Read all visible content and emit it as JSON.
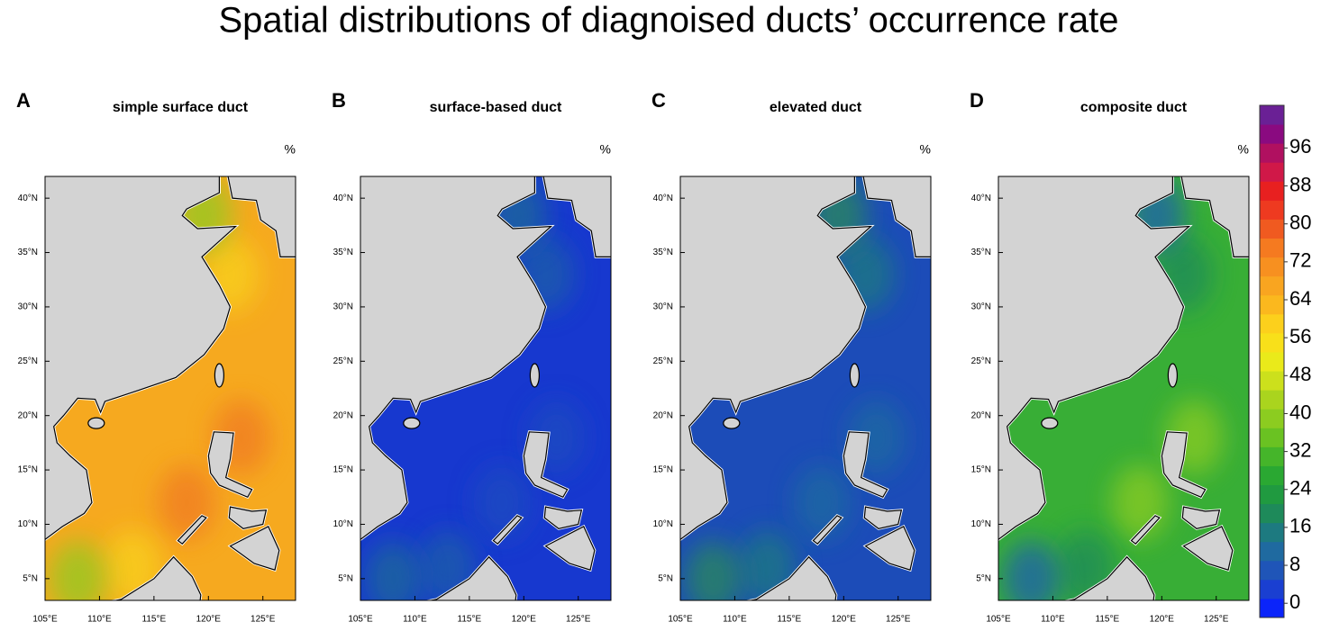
{
  "title": "Spatial distributions of diagnoised ducts’ occurrence rate",
  "panels": [
    {
      "letter": "A",
      "title": "simple surface duct",
      "unit": "%",
      "ocean_color": "#f6a91f",
      "accent_colors": [
        "#f07a22",
        "#f8d21c",
        "#8fcb22"
      ]
    },
    {
      "letter": "B",
      "title": "surface-based duct",
      "unit": "%",
      "ocean_color": "#1738cf",
      "accent_colors": [
        "#1a4cc0",
        "#1e5fa8",
        "#1e6a98"
      ]
    },
    {
      "letter": "C",
      "title": "elevated duct",
      "unit": "%",
      "ocean_color": "#1c4cb8",
      "accent_colors": [
        "#1f6aa0",
        "#1e7a80",
        "#2a8a5a"
      ]
    },
    {
      "letter": "D",
      "title": "composite duct",
      "unit": "%",
      "ocean_color": "#38ae36",
      "accent_colors": [
        "#8ccc20",
        "#1e8a5a",
        "#1d5fb0"
      ]
    }
  ],
  "xlim": [
    105,
    128
  ],
  "ylim": [
    3,
    42
  ],
  "xticks": [
    {
      "value": 105,
      "label": "105°E"
    },
    {
      "value": 110,
      "label": "110°E"
    },
    {
      "value": 115,
      "label": "115°E"
    },
    {
      "value": 120,
      "label": "120°E"
    },
    {
      "value": 125,
      "label": "125°E"
    }
  ],
  "yticks": [
    {
      "value": 5,
      "label": "5°N"
    },
    {
      "value": 10,
      "label": "10°N"
    },
    {
      "value": 15,
      "label": "15°N"
    },
    {
      "value": 20,
      "label": "20°N"
    },
    {
      "value": 25,
      "label": "25°N"
    },
    {
      "value": 30,
      "label": "30°N"
    },
    {
      "value": 35,
      "label": "35°N"
    },
    {
      "value": 40,
      "label": "40°N"
    }
  ],
  "colorbar": {
    "clim": [
      -3,
      105
    ],
    "ticks": [
      0,
      8,
      16,
      24,
      32,
      40,
      48,
      56,
      64,
      72,
      80,
      88,
      96
    ],
    "colors": [
      "#0b24fa",
      "#1a3fd1",
      "#1f55b8",
      "#1f6aa0",
      "#1d7a80",
      "#1e8a5a",
      "#209a40",
      "#2aa832",
      "#45b52a",
      "#6ac222",
      "#8ccc20",
      "#aad41e",
      "#cce01c",
      "#eaea1a",
      "#f8e01a",
      "#fcd01c",
      "#fbb81e",
      "#f9a520",
      "#f79020",
      "#f57a20",
      "#f05a20",
      "#ee3a20",
      "#e82020",
      "#d01848",
      "#b01060",
      "#8a0a80",
      "#6a2095"
    ]
  }
}
